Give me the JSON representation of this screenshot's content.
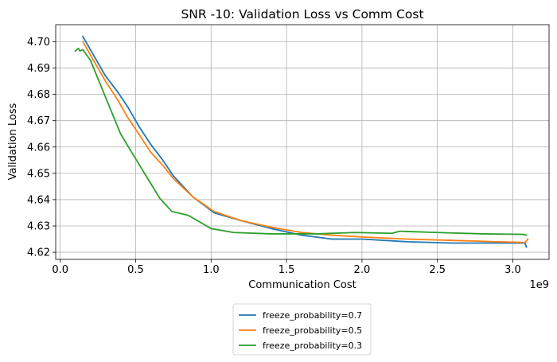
{
  "chart_data": {
    "type": "line",
    "title": "SNR -10: Validation Loss vs Comm Cost",
    "xlabel": "Communication Cost",
    "ylabel": "Validation Loss",
    "x_offset_label": "1e9",
    "xlim": [
      -0.03,
      3.24
    ],
    "ylim": [
      4.6173,
      4.7065
    ],
    "xticks": [
      0.0,
      0.5,
      1.0,
      1.5,
      2.0,
      2.5,
      3.0
    ],
    "xtick_labels": [
      "0.0",
      "0.5",
      "1.0",
      "1.5",
      "2.0",
      "2.5",
      "3.0"
    ],
    "yticks": [
      4.62,
      4.63,
      4.64,
      4.65,
      4.66,
      4.67,
      4.68,
      4.69,
      4.7
    ],
    "ytick_labels": [
      "4.62",
      "4.63",
      "4.64",
      "4.65",
      "4.66",
      "4.67",
      "4.68",
      "4.69",
      "4.70"
    ],
    "grid": true,
    "legend_position": "below",
    "series": [
      {
        "name": "freeze_probability=0.7",
        "color": "#1f77b4",
        "x": [
          0.15,
          0.2,
          0.3,
          0.38,
          0.45,
          0.52,
          0.6,
          0.68,
          0.75,
          0.88,
          1.02,
          1.2,
          1.4,
          1.6,
          1.8,
          2.0,
          2.3,
          2.6,
          2.9,
          3.08,
          3.09
        ],
        "y": [
          4.702,
          4.697,
          4.687,
          4.681,
          4.675,
          4.668,
          4.661,
          4.655,
          4.649,
          4.641,
          4.635,
          4.632,
          4.629,
          4.6265,
          4.625,
          4.625,
          4.624,
          4.6235,
          4.6235,
          4.6235,
          4.622
        ]
      },
      {
        "name": "freeze_probability=0.5",
        "color": "#ff7f0e",
        "x": [
          0.15,
          0.2,
          0.3,
          0.38,
          0.45,
          0.52,
          0.6,
          0.68,
          0.75,
          0.88,
          1.02,
          1.2,
          1.4,
          1.6,
          1.8,
          2.0,
          2.3,
          2.6,
          2.9,
          3.08,
          3.1
        ],
        "y": [
          4.7,
          4.695,
          4.685,
          4.678,
          4.671,
          4.665,
          4.658,
          4.653,
          4.648,
          4.641,
          4.6355,
          4.632,
          4.6295,
          4.6275,
          4.6265,
          4.6258,
          4.625,
          4.6245,
          4.624,
          4.6237,
          4.625
        ]
      },
      {
        "name": "freeze_probability=0.3",
        "color": "#2ca02c",
        "x": [
          0.1,
          0.12,
          0.13,
          0.15,
          0.2,
          0.3,
          0.4,
          0.5,
          0.58,
          0.66,
          0.74,
          0.85,
          1.0,
          1.15,
          1.4,
          1.7,
          1.95,
          2.2,
          2.25,
          2.5,
          2.8,
          3.07,
          3.09
        ],
        "y": [
          4.6965,
          4.6975,
          4.6965,
          4.697,
          4.693,
          4.679,
          4.665,
          4.6555,
          4.648,
          4.6405,
          4.6355,
          4.634,
          4.629,
          4.6275,
          4.627,
          4.627,
          4.6275,
          4.6272,
          4.628,
          4.6275,
          4.627,
          4.6268,
          4.6265
        ]
      }
    ]
  }
}
